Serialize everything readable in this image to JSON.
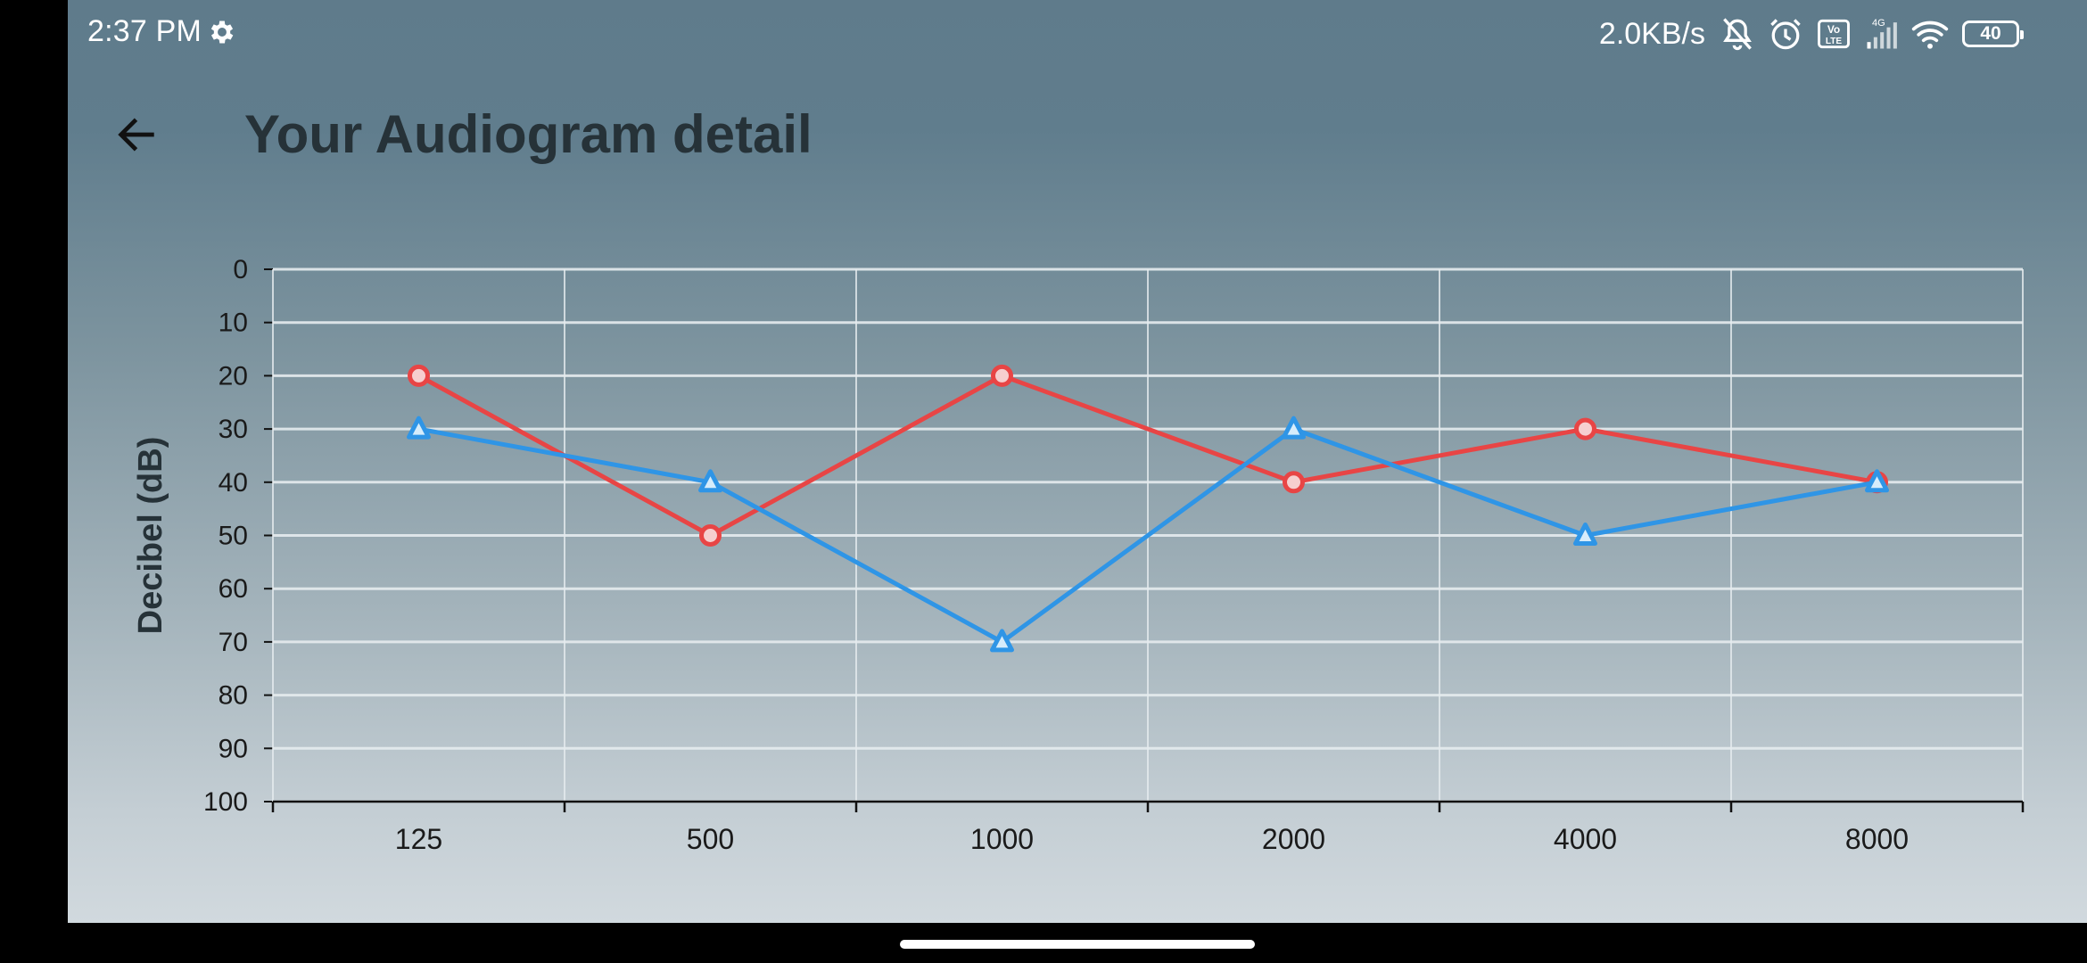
{
  "status_bar": {
    "time": "2:37 PM",
    "net_speed": "2.0KB/s",
    "battery": "40",
    "signal_label": "4G",
    "icons": [
      "settings-gear-icon",
      "mute-icon",
      "alarm-icon",
      "volte-icon",
      "signal-icon",
      "wifi-icon",
      "battery-icon"
    ]
  },
  "app_bar": {
    "back_icon": "arrow-left-icon",
    "title": "Your Audiogram detail"
  },
  "colors": {
    "right_ear": "#e84545",
    "left_ear": "#2f95e6",
    "grid": "#e6ecef",
    "axis": "#111111",
    "title": "#263238"
  },
  "chart_data": {
    "type": "line",
    "title": "",
    "xlabel": "",
    "ylabel": "Decibel (dB)",
    "categories": [
      "125",
      "500",
      "1000",
      "2000",
      "4000",
      "8000"
    ],
    "ylim": [
      0,
      100
    ],
    "y_inverted": true,
    "y_ticks": [
      "0",
      "10",
      "20",
      "30",
      "40",
      "50",
      "60",
      "70",
      "80",
      "90",
      "100"
    ],
    "grid": true,
    "series": [
      {
        "marker": "circle",
        "color": "#e84545",
        "values": [
          20,
          50,
          20,
          40,
          30,
          40
        ]
      },
      {
        "marker": "triangle",
        "color": "#2f95e6",
        "values": [
          30,
          40,
          70,
          30,
          50,
          40
        ]
      }
    ]
  }
}
